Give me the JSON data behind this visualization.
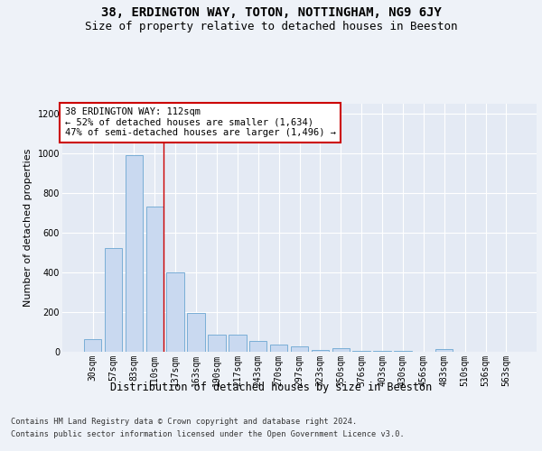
{
  "title1": "38, ERDINGTON WAY, TOTON, NOTTINGHAM, NG9 6JY",
  "title2": "Size of property relative to detached houses in Beeston",
  "xlabel": "Distribution of detached houses by size in Beeston",
  "ylabel": "Number of detached properties",
  "categories": [
    "30sqm",
    "57sqm",
    "83sqm",
    "110sqm",
    "137sqm",
    "163sqm",
    "190sqm",
    "217sqm",
    "243sqm",
    "270sqm",
    "297sqm",
    "323sqm",
    "350sqm",
    "376sqm",
    "403sqm",
    "430sqm",
    "456sqm",
    "483sqm",
    "510sqm",
    "536sqm",
    "563sqm"
  ],
  "values": [
    65,
    525,
    990,
    730,
    400,
    195,
    85,
    85,
    55,
    35,
    28,
    10,
    18,
    5,
    5,
    3,
    2,
    12,
    2,
    2,
    2
  ],
  "bar_color": "#c9d9f0",
  "bar_edge_color": "#7aaed6",
  "red_line_index": 3,
  "annotation_text": "38 ERDINGTON WAY: 112sqm\n← 52% of detached houses are smaller (1,634)\n47% of semi-detached houses are larger (1,496) →",
  "annotation_box_color": "#ffffff",
  "annotation_box_edge_color": "#cc0000",
  "ylim": [
    0,
    1250
  ],
  "yticks": [
    0,
    200,
    400,
    600,
    800,
    1000,
    1200
  ],
  "footer1": "Contains HM Land Registry data © Crown copyright and database right 2024.",
  "footer2": "Contains public sector information licensed under the Open Government Licence v3.0.",
  "bg_color": "#eef2f8",
  "plot_bg_color": "#e4eaf4",
  "grid_color": "#ffffff",
  "title1_fontsize": 10,
  "title2_fontsize": 9,
  "xlabel_fontsize": 8.5,
  "ylabel_fontsize": 8,
  "tick_fontsize": 7,
  "annotation_fontsize": 7.5,
  "footer_fontsize": 6.2
}
